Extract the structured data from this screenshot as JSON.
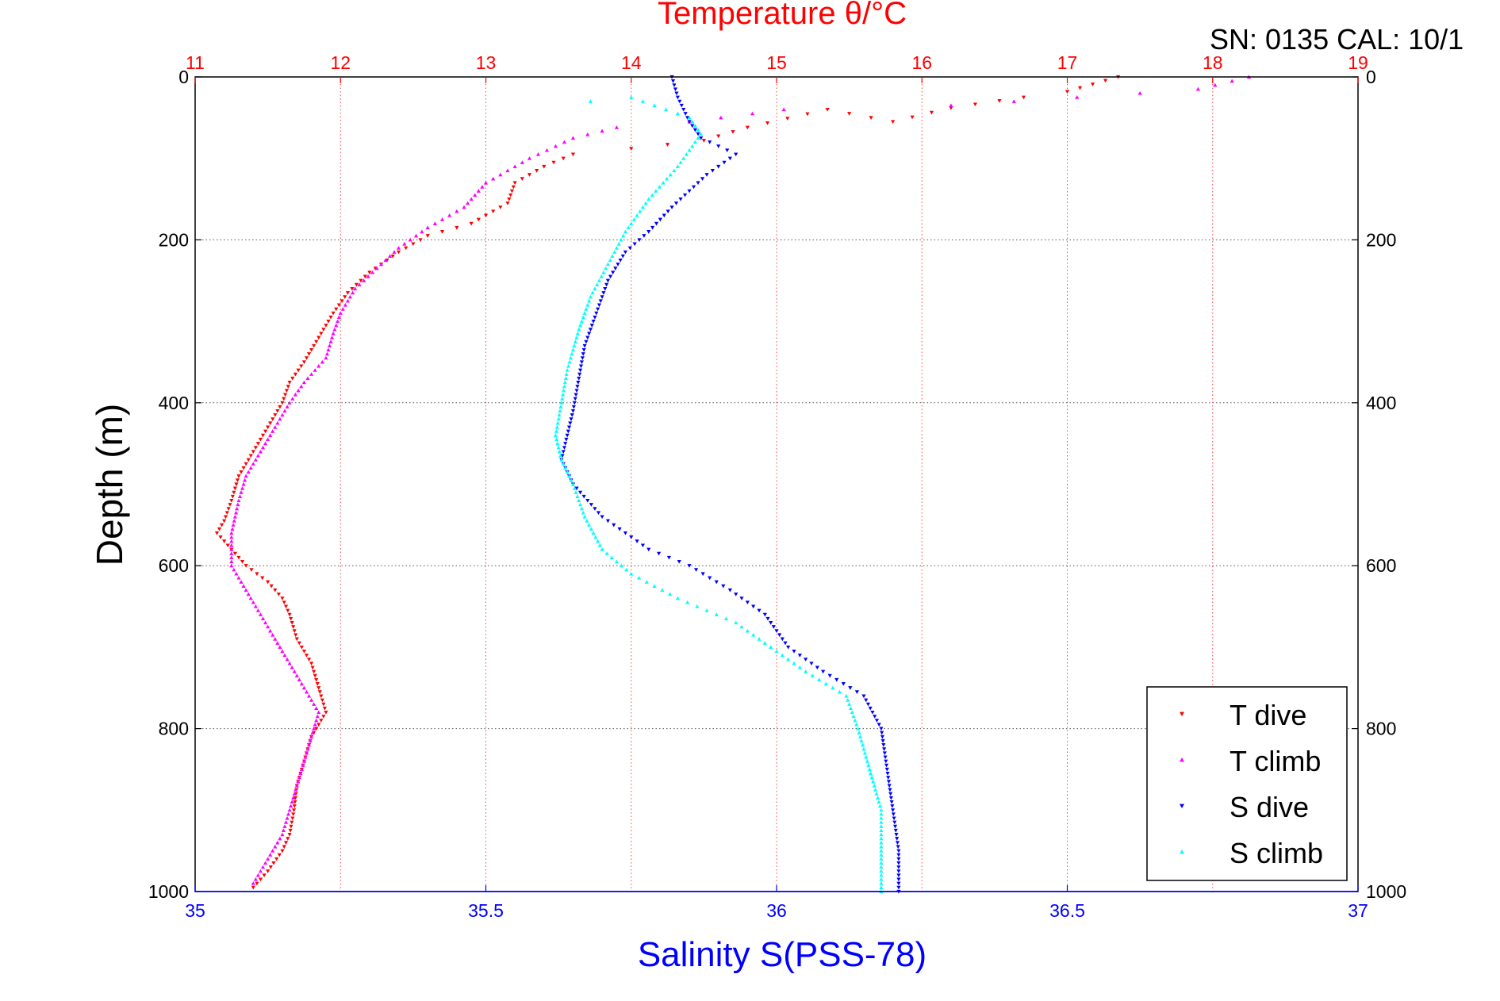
{
  "chart_data": {
    "type": "scatter",
    "title": "Temperature θ/°C",
    "header_text": "SN: 0135  CAL: 10/1",
    "ylabel": "Depth (m)",
    "xlabel_bottom": "Salinity S(PSS-78)",
    "xlabel_top": "Temperature θ/°C",
    "y_axis": {
      "range": [
        0,
        1000
      ],
      "reversed": true,
      "ticks": [
        "0",
        "200",
        "400",
        "600",
        "800",
        "1000"
      ],
      "tick_values": [
        0,
        200,
        400,
        600,
        800,
        1000
      ]
    },
    "x_axis_bottom": {
      "range": [
        35,
        37
      ],
      "ticks": [
        "35",
        "35.5",
        "36",
        "36.5",
        "37"
      ],
      "tick_values": [
        35,
        35.5,
        36,
        36.5,
        37
      ],
      "color": "#0000ff"
    },
    "x_axis_top": {
      "range": [
        11,
        19
      ],
      "ticks": [
        "11",
        "12",
        "13",
        "14",
        "15",
        "16",
        "17",
        "18",
        "19"
      ],
      "tick_values": [
        11,
        12,
        13,
        14,
        15,
        16,
        17,
        18,
        19
      ],
      "color": "#ff0000"
    },
    "grid": true,
    "legend_position": "bottom-right",
    "series": [
      {
        "name": "T dive",
        "axis": "top",
        "marker": "triangle-down",
        "color": "#ff0000",
        "points": [
          [
            17.35,
            0
          ],
          [
            17.0,
            18
          ],
          [
            16.7,
            25
          ],
          [
            16.2,
            38
          ],
          [
            15.8,
            55
          ],
          [
            15.35,
            40
          ],
          [
            14.8,
            62
          ],
          [
            14.5,
            78
          ],
          [
            14.0,
            88
          ],
          [
            13.6,
            95
          ],
          [
            13.4,
            110
          ],
          [
            13.2,
            130
          ],
          [
            13.15,
            155
          ],
          [
            13.0,
            170
          ],
          [
            12.9,
            180
          ],
          [
            12.6,
            195
          ],
          [
            12.4,
            215
          ],
          [
            12.2,
            240
          ],
          [
            12.05,
            265
          ],
          [
            11.95,
            290
          ],
          [
            11.85,
            320
          ],
          [
            11.75,
            350
          ],
          [
            11.65,
            375
          ],
          [
            11.6,
            400
          ],
          [
            11.5,
            430
          ],
          [
            11.4,
            460
          ],
          [
            11.3,
            490
          ],
          [
            11.25,
            520
          ],
          [
            11.2,
            545
          ],
          [
            11.15,
            560
          ],
          [
            11.25,
            580
          ],
          [
            11.35,
            600
          ],
          [
            11.5,
            620
          ],
          [
            11.6,
            640
          ],
          [
            11.65,
            660
          ],
          [
            11.7,
            690
          ],
          [
            11.8,
            720
          ],
          [
            11.85,
            750
          ],
          [
            11.9,
            780
          ],
          [
            11.8,
            810
          ],
          [
            11.75,
            840
          ],
          [
            11.7,
            870
          ],
          [
            11.68,
            900
          ],
          [
            11.65,
            930
          ],
          [
            11.6,
            950
          ],
          [
            11.5,
            975
          ],
          [
            11.4,
            995
          ]
        ]
      },
      {
        "name": "T climb",
        "axis": "top",
        "marker": "triangle-up",
        "color": "#ff00ff",
        "points": [
          [
            18.25,
            0
          ],
          [
            17.9,
            15
          ],
          [
            17.5,
            20
          ],
          [
            16.2,
            35
          ],
          [
            15.05,
            40
          ],
          [
            14.4,
            55
          ],
          [
            13.9,
            62
          ],
          [
            13.6,
            75
          ],
          [
            13.3,
            100
          ],
          [
            13.0,
            130
          ],
          [
            12.85,
            160
          ],
          [
            12.6,
            185
          ],
          [
            12.4,
            210
          ],
          [
            12.25,
            235
          ],
          [
            12.1,
            260
          ],
          [
            12.0,
            290
          ],
          [
            11.95,
            315
          ],
          [
            11.9,
            345
          ],
          [
            11.75,
            375
          ],
          [
            11.65,
            400
          ],
          [
            11.55,
            430
          ],
          [
            11.45,
            460
          ],
          [
            11.35,
            490
          ],
          [
            11.3,
            520
          ],
          [
            11.25,
            560
          ],
          [
            11.25,
            600
          ],
          [
            11.35,
            630
          ],
          [
            11.45,
            660
          ],
          [
            11.55,
            690
          ],
          [
            11.65,
            720
          ],
          [
            11.75,
            750
          ],
          [
            11.85,
            780
          ],
          [
            11.8,
            810
          ],
          [
            11.75,
            840
          ],
          [
            11.7,
            870
          ],
          [
            11.65,
            900
          ],
          [
            11.6,
            930
          ],
          [
            11.5,
            960
          ],
          [
            11.4,
            990
          ]
        ]
      },
      {
        "name": "S dive",
        "axis": "bottom",
        "marker": "triangle-down",
        "color": "#0000ff",
        "points": [
          [
            35.82,
            0
          ],
          [
            35.83,
            25
          ],
          [
            35.85,
            55
          ],
          [
            35.87,
            75
          ],
          [
            35.93,
            95
          ],
          [
            35.88,
            120
          ],
          [
            35.82,
            160
          ],
          [
            35.78,
            190
          ],
          [
            35.74,
            215
          ],
          [
            35.71,
            250
          ],
          [
            35.69,
            290
          ],
          [
            35.67,
            330
          ],
          [
            35.66,
            370
          ],
          [
            35.65,
            410
          ],
          [
            35.64,
            440
          ],
          [
            35.63,
            470
          ],
          [
            35.65,
            500
          ],
          [
            35.7,
            540
          ],
          [
            35.78,
            580
          ],
          [
            35.85,
            600
          ],
          [
            35.92,
            630
          ],
          [
            35.98,
            660
          ],
          [
            36.02,
            700
          ],
          [
            36.08,
            730
          ],
          [
            36.15,
            760
          ],
          [
            36.18,
            800
          ],
          [
            36.19,
            850
          ],
          [
            36.2,
            900
          ],
          [
            36.21,
            950
          ],
          [
            36.21,
            1000
          ]
        ]
      },
      {
        "name": "S climb",
        "axis": "bottom",
        "marker": "triangle-up",
        "color": "#00ffff",
        "points": [
          [
            35.68,
            30
          ],
          [
            35.75,
            25
          ],
          [
            35.85,
            50
          ],
          [
            35.87,
            70
          ],
          [
            35.83,
            110
          ],
          [
            35.78,
            150
          ],
          [
            35.74,
            190
          ],
          [
            35.71,
            230
          ],
          [
            35.68,
            270
          ],
          [
            35.66,
            310
          ],
          [
            35.64,
            360
          ],
          [
            35.63,
            400
          ],
          [
            35.62,
            440
          ],
          [
            35.63,
            470
          ],
          [
            35.65,
            500
          ],
          [
            35.67,
            540
          ],
          [
            35.7,
            580
          ],
          [
            35.75,
            610
          ],
          [
            35.83,
            640
          ],
          [
            35.93,
            670
          ],
          [
            35.99,
            700
          ],
          [
            36.05,
            730
          ],
          [
            36.12,
            760
          ],
          [
            36.14,
            800
          ],
          [
            36.16,
            850
          ],
          [
            36.18,
            900
          ],
          [
            36.18,
            950
          ],
          [
            36.18,
            1000
          ]
        ]
      }
    ]
  }
}
